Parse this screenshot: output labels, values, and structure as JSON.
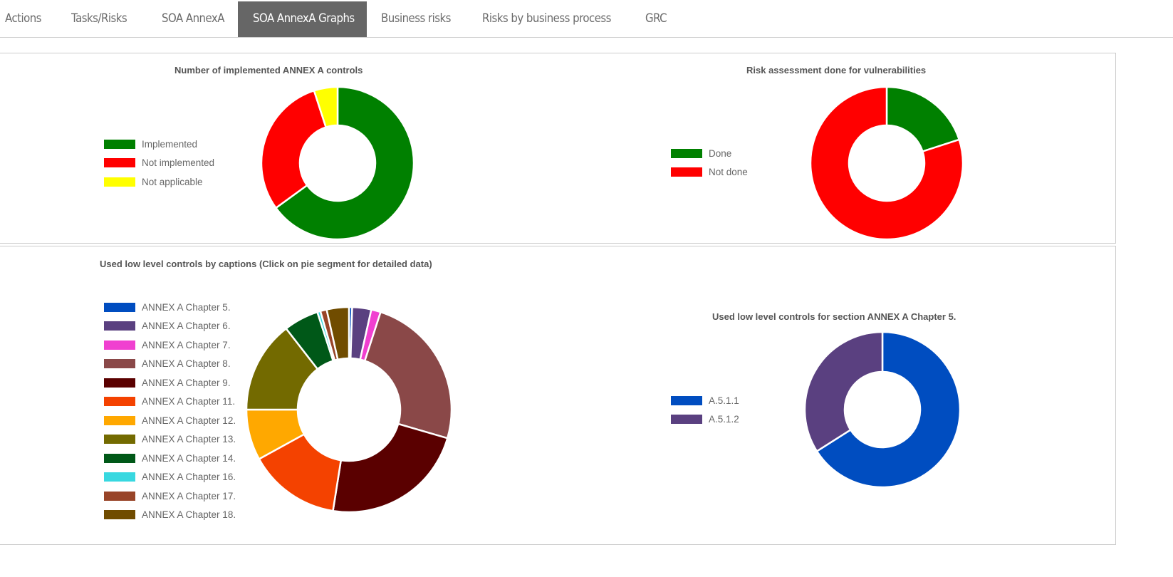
{
  "tabs": [
    {
      "label": "Actions",
      "active": false
    },
    {
      "label": "Tasks/Risks",
      "active": false
    },
    {
      "label": "SOA AnnexA",
      "active": false
    },
    {
      "label": "SOA AnnexA Graphs",
      "active": true
    },
    {
      "label": "Business risks",
      "active": false
    },
    {
      "label": "Risks by business process",
      "active": false
    },
    {
      "label": "GRC",
      "active": false
    }
  ],
  "chart_data": [
    {
      "type": "pie",
      "variant": "donut",
      "title": "Number of implemented ANNEX A controls",
      "legend_position": "left",
      "categories": [
        "Implemented",
        "Not implemented",
        "Not applicable"
      ],
      "values": [
        65,
        30,
        5
      ],
      "unit": "percent (estimated from arc angles)",
      "colors": [
        "#008000",
        "#ff0000",
        "#ffff00"
      ]
    },
    {
      "type": "pie",
      "variant": "donut",
      "title": "Risk assessment done for vulnerabilities",
      "legend_position": "left",
      "categories": [
        "Done",
        "Not done"
      ],
      "values": [
        20,
        80
      ],
      "unit": "percent (estimated from arc angles)",
      "colors": [
        "#008000",
        "#ff0000"
      ]
    },
    {
      "type": "pie",
      "variant": "donut",
      "title": "Used low level controls by captions (Click on pie segment for detailed data)",
      "legend_position": "left",
      "categories": [
        "ANNEX A Chapter 5.",
        "ANNEX A Chapter 6.",
        "ANNEX A Chapter 7.",
        "ANNEX A Chapter 8.",
        "ANNEX A Chapter 9.",
        "ANNEX A Chapter 11.",
        "ANNEX A Chapter 12.",
        "ANNEX A Chapter 13.",
        "ANNEX A Chapter 14.",
        "ANNEX A Chapter 16.",
        "ANNEX A Chapter 17.",
        "ANNEX A Chapter 18."
      ],
      "values": [
        0.5,
        3,
        1.5,
        24.5,
        23,
        14.5,
        8,
        14.5,
        5.5,
        0.5,
        1,
        3.5
      ],
      "unit": "percent (estimated from arc angles)",
      "colors": [
        "#004dc0",
        "#5a4080",
        "#f040d0",
        "#8a4848",
        "#5a0000",
        "#f44200",
        "#ffa800",
        "#736a00",
        "#005818",
        "#38d8e0",
        "#984428",
        "#704c00"
      ]
    },
    {
      "type": "pie",
      "variant": "donut",
      "title": "Used low level controls for section ANNEX A Chapter 5.",
      "legend_position": "left",
      "categories": [
        "A.5.1.1",
        "A.5.1.2"
      ],
      "values": [
        66,
        34
      ],
      "unit": "percent (estimated from arc angles)",
      "colors": [
        "#004dc0",
        "#5a4080"
      ]
    }
  ]
}
